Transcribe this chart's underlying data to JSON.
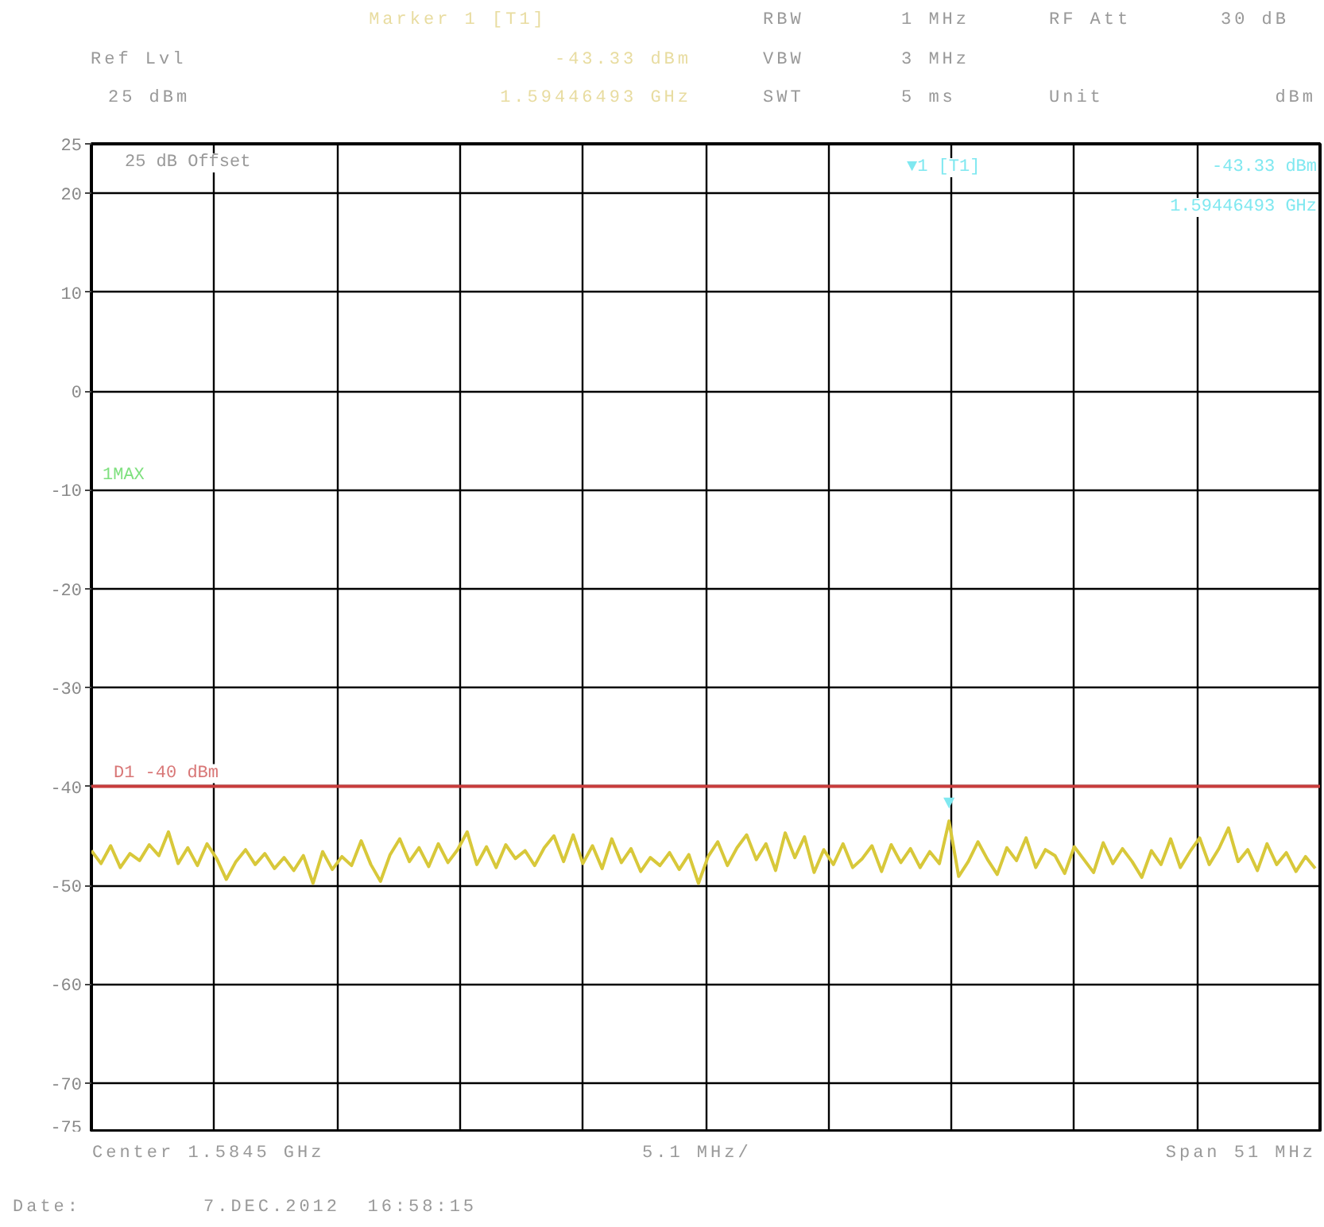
{
  "chart_data": {
    "type": "line",
    "annotations": [
      "Marker 1 [T1]",
      "Ref Lvl",
      "-43.33 dBm",
      "25 dBm",
      "1.59446493 GHz",
      "RBW",
      "1 MHz",
      "VBW",
      "3 MHz",
      "SWT",
      "5 ms",
      "RF Att",
      "30 dB",
      "Unit",
      "dBm",
      "25 dB Offset",
      "1MAX",
      "▼1 [T1]",
      "-43.33 dBm",
      "1.59446493 GHz",
      "Center 1.5845 GHz",
      "5.1 MHz/",
      "Span 51 MHz",
      "Date:",
      "7.DEC.2012  16:58:15",
      "▼"
    ],
    "categories": [
      null,
      null,
      null,
      null,
      null,
      null,
      null,
      null,
      null,
      null,
      null,
      null,
      null,
      null,
      null,
      null,
      null,
      null,
      null,
      null,
      null,
      null,
      null,
      null,
      null,
      null,
      null,
      null,
      null,
      null,
      null,
      null,
      null,
      null,
      null,
      null,
      null,
      null,
      null,
      null,
      null,
      null,
      null,
      null,
      null,
      null,
      null,
      null,
      null,
      null,
      null,
      null,
      null,
      null,
      null,
      null,
      null,
      null,
      null,
      null,
      null,
      null,
      null,
      null,
      null,
      null,
      null,
      null,
      null,
      null,
      null,
      null,
      null,
      null,
      null,
      null,
      null,
      null,
      null,
      null,
      null,
      null,
      null,
      null,
      null,
      null,
      null,
      null,
      null,
      null,
      null,
      null,
      null,
      null,
      null,
      null,
      null,
      null,
      null,
      null,
      null,
      null,
      null,
      null,
      null,
      null,
      null,
      null,
      null,
      null,
      null,
      null,
      null,
      null,
      null,
      null,
      null,
      null,
      null,
      null,
      null,
      null,
      null,
      null,
      null,
      null,
      null,
      null
    ],
    "ylim": [
      -75,
      25
    ],
    "yticks": [
      -75,
      -70,
      -60,
      -50,
      -40,
      -30,
      -20,
      -10,
      0,
      10,
      20,
      25
    ],
    "tick_labels": "y",
    "grid": true,
    "ref_lines": [
      {
        "axis": "y",
        "value": -40,
        "label": "D1 -40 dBm",
        "color": "#c83c3c"
      }
    ],
    "series": [
      {
        "color": "#d8c83a",
        "values": [
          -46.5,
          -47.8,
          -46.0,
          -48.2,
          -46.8,
          -47.5,
          -45.9,
          -47.0,
          -44.6,
          -47.8,
          -46.2,
          -48.0,
          -45.8,
          -47.3,
          -49.4,
          -47.6,
          -46.4,
          -47.9,
          -46.8,
          -48.3,
          -47.2,
          -48.5,
          -47.0,
          -49.8,
          -46.6,
          -48.4,
          -47.1,
          -48.0,
          -45.5,
          -47.9,
          -49.6,
          -46.9,
          -45.3,
          -47.6,
          -46.2,
          -48.1,
          -45.8,
          -47.7,
          -46.4,
          -44.6,
          -47.9,
          -46.1,
          -48.2,
          -45.9,
          -47.3,
          -46.5,
          -48.0,
          -46.2,
          -45.0,
          -47.6,
          -44.9,
          -47.8,
          -46.0,
          -48.3,
          -45.3,
          -47.7,
          -46.3,
          -48.6,
          -47.2,
          -48.0,
          -46.7,
          -48.4,
          -46.9,
          -49.8,
          -47.1,
          -45.6,
          -48.0,
          -46.2,
          -44.9,
          -47.4,
          -45.8,
          -48.5,
          -44.7,
          -47.2,
          -45.1,
          -48.7,
          -46.4,
          -47.9,
          -45.8,
          -48.2,
          -47.3,
          -46.0,
          -48.6,
          -45.9,
          -47.7,
          -46.3,
          -48.2,
          -46.6,
          -47.8,
          -43.5,
          -49.1,
          -47.6,
          -45.6,
          -47.4,
          -48.9,
          -46.2,
          -47.5,
          -45.2,
          -48.2,
          -46.4,
          -47.0,
          -48.8,
          -46.1,
          -47.4,
          -48.7,
          -45.7,
          -47.8,
          -46.3,
          -47.6,
          -49.2,
          -46.5,
          -47.9,
          -45.3,
          -48.2,
          -46.6,
          -45.2,
          -47.9,
          -46.3,
          -44.2,
          -47.6,
          -46.4,
          -48.5,
          -45.8,
          -47.9,
          -46.7,
          -48.6,
          -47.1,
          -48.3
        ]
      }
    ]
  }
}
